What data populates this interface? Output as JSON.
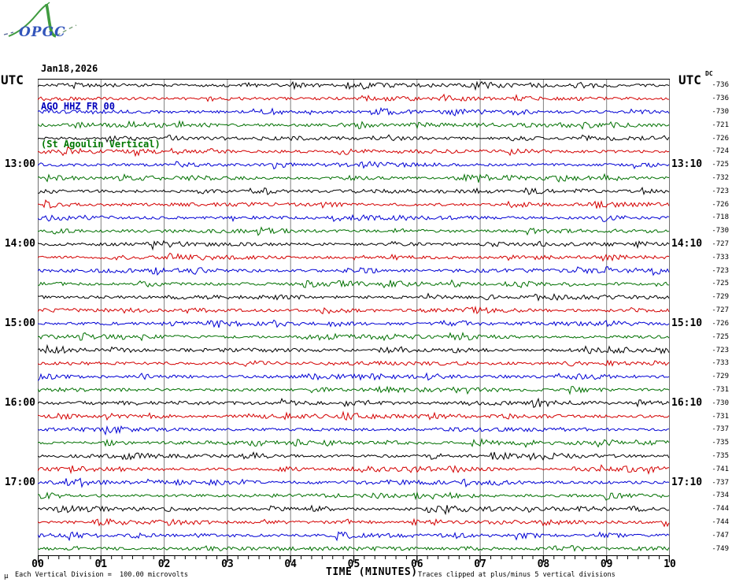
{
  "logo": {
    "text": "OPGC",
    "text_color": "#3355bb",
    "curve_color": "#3f9b3f"
  },
  "header": {
    "date": "Jan18,2026",
    "date_color": "#000000",
    "station": "AGO HHZ FR 00",
    "station_color": "#0000bb",
    "station_desc": "(St Agoulin Vertical)",
    "desc_color": "#007700"
  },
  "left_axis": {
    "title": "UTC"
  },
  "right_axis": {
    "title": "UTC",
    "dc_header": "DC"
  },
  "x_axis": {
    "title": "TIME (MINUTES)",
    "tick_labels": [
      "00",
      "01",
      "02",
      "03",
      "04",
      "05",
      "06",
      "07",
      "08",
      "09",
      "10"
    ],
    "minor_ticks_per_major": 5
  },
  "footer": {
    "left_note": "Each Vertical Division =  100.00 microvolts",
    "right_note": "Traces clipped at plus/minus 5 vertical divisions",
    "corner_mark": "µ"
  },
  "chart_data": {
    "type": "line",
    "subtype": "helicorder-seismogram",
    "title": "AGO HHZ FR 00 (St Agoulin Vertical) Jan18,2026",
    "xlabel": "TIME (MINUTES)",
    "x_range_minutes": [
      0,
      10
    ],
    "minutes_per_row": 10,
    "grid": "vertical lines at every minute",
    "vertical_division_microvolts": 100.0,
    "clip_divisions": 5,
    "trace_colors_cycle": [
      "#000000",
      "#d40000",
      "#0000d4",
      "#007000"
    ],
    "rows": [
      {
        "t0": "12:00",
        "t1": "12:10",
        "color": "black",
        "dc": -736,
        "left_label": "",
        "right_label": ""
      },
      {
        "t0": "12:10",
        "t1": "12:20",
        "color": "red",
        "dc": -736,
        "left_label": "",
        "right_label": ""
      },
      {
        "t0": "12:20",
        "t1": "12:30",
        "color": "blue",
        "dc": -730,
        "left_label": "",
        "right_label": ""
      },
      {
        "t0": "12:30",
        "t1": "12:40",
        "color": "green",
        "dc": -721,
        "left_label": "",
        "right_label": ""
      },
      {
        "t0": "12:40",
        "t1": "12:50",
        "color": "black",
        "dc": -726,
        "left_label": "",
        "right_label": ""
      },
      {
        "t0": "12:50",
        "t1": "13:00",
        "color": "red",
        "dc": -724,
        "left_label": "",
        "right_label": ""
      },
      {
        "t0": "13:00",
        "t1": "13:10",
        "color": "blue",
        "dc": -725,
        "left_label": "13:00",
        "right_label": "13:10"
      },
      {
        "t0": "13:10",
        "t1": "13:20",
        "color": "green",
        "dc": -732,
        "left_label": "",
        "right_label": ""
      },
      {
        "t0": "13:20",
        "t1": "13:30",
        "color": "black",
        "dc": -723,
        "left_label": "",
        "right_label": ""
      },
      {
        "t0": "13:30",
        "t1": "13:40",
        "color": "red",
        "dc": -726,
        "left_label": "",
        "right_label": ""
      },
      {
        "t0": "13:40",
        "t1": "13:50",
        "color": "blue",
        "dc": -718,
        "left_label": "",
        "right_label": ""
      },
      {
        "t0": "13:50",
        "t1": "14:00",
        "color": "green",
        "dc": -730,
        "left_label": "",
        "right_label": ""
      },
      {
        "t0": "14:00",
        "t1": "14:10",
        "color": "black",
        "dc": -727,
        "left_label": "14:00",
        "right_label": "14:10"
      },
      {
        "t0": "14:10",
        "t1": "14:20",
        "color": "red",
        "dc": -733,
        "left_label": "",
        "right_label": ""
      },
      {
        "t0": "14:20",
        "t1": "14:30",
        "color": "blue",
        "dc": -723,
        "left_label": "",
        "right_label": ""
      },
      {
        "t0": "14:30",
        "t1": "14:40",
        "color": "green",
        "dc": -725,
        "left_label": "",
        "right_label": ""
      },
      {
        "t0": "14:40",
        "t1": "14:50",
        "color": "black",
        "dc": -729,
        "left_label": "",
        "right_label": ""
      },
      {
        "t0": "14:50",
        "t1": "15:00",
        "color": "red",
        "dc": -727,
        "left_label": "",
        "right_label": ""
      },
      {
        "t0": "15:00",
        "t1": "15:10",
        "color": "blue",
        "dc": -726,
        "left_label": "15:00",
        "right_label": "15:10"
      },
      {
        "t0": "15:10",
        "t1": "15:20",
        "color": "green",
        "dc": -725,
        "left_label": "",
        "right_label": ""
      },
      {
        "t0": "15:20",
        "t1": "15:30",
        "color": "black",
        "dc": -723,
        "left_label": "",
        "right_label": ""
      },
      {
        "t0": "15:30",
        "t1": "15:40",
        "color": "red",
        "dc": -733,
        "left_label": "",
        "right_label": ""
      },
      {
        "t0": "15:40",
        "t1": "15:50",
        "color": "blue",
        "dc": -729,
        "left_label": "",
        "right_label": ""
      },
      {
        "t0": "15:50",
        "t1": "16:00",
        "color": "green",
        "dc": -731,
        "left_label": "",
        "right_label": ""
      },
      {
        "t0": "16:00",
        "t1": "16:10",
        "color": "black",
        "dc": -730,
        "left_label": "16:00",
        "right_label": "16:10"
      },
      {
        "t0": "16:10",
        "t1": "16:20",
        "color": "red",
        "dc": -731,
        "left_label": "",
        "right_label": ""
      },
      {
        "t0": "16:20",
        "t1": "16:30",
        "color": "blue",
        "dc": -737,
        "left_label": "",
        "right_label": ""
      },
      {
        "t0": "16:30",
        "t1": "16:40",
        "color": "green",
        "dc": -735,
        "left_label": "",
        "right_label": ""
      },
      {
        "t0": "16:40",
        "t1": "16:50",
        "color": "black",
        "dc": -735,
        "left_label": "",
        "right_label": ""
      },
      {
        "t0": "16:50",
        "t1": "17:00",
        "color": "red",
        "dc": -741,
        "left_label": "",
        "right_label": ""
      },
      {
        "t0": "17:00",
        "t1": "17:10",
        "color": "blue",
        "dc": -737,
        "left_label": "17:00",
        "right_label": "17:10"
      },
      {
        "t0": "17:10",
        "t1": "17:20",
        "color": "green",
        "dc": -734,
        "left_label": "",
        "right_label": ""
      },
      {
        "t0": "17:20",
        "t1": "17:30",
        "color": "black",
        "dc": -744,
        "left_label": "",
        "right_label": ""
      },
      {
        "t0": "17:30",
        "t1": "17:40",
        "color": "red",
        "dc": -744,
        "left_label": "",
        "right_label": ""
      },
      {
        "t0": "17:40",
        "t1": "17:50",
        "color": "blue",
        "dc": -747,
        "left_label": "",
        "right_label": ""
      },
      {
        "t0": "17:50",
        "t1": "18:00",
        "color": "green",
        "dc": -749,
        "left_label": "",
        "right_label": ""
      }
    ]
  }
}
